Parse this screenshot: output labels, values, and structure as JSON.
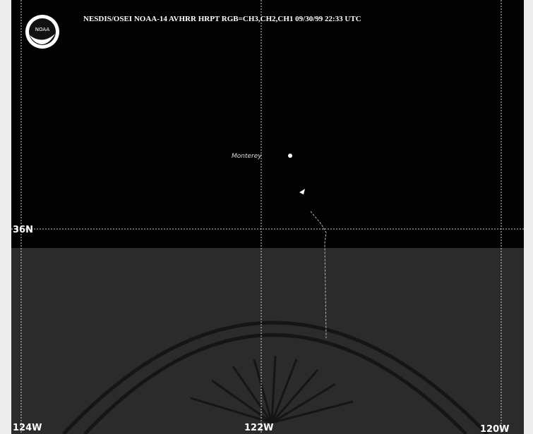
{
  "header": {
    "title": "NESDIS/OSEI NOAA-14 AVHRR HRPT RGB=CH3,CH2,CH1 09/30/99 22:33 UTC",
    "logo": "NOAA"
  },
  "grid": {
    "lat_labels": [
      "36N"
    ],
    "lon_labels": [
      "124W",
      "122W",
      "120W"
    ]
  },
  "places": [
    {
      "label": "Monterey"
    }
  ]
}
